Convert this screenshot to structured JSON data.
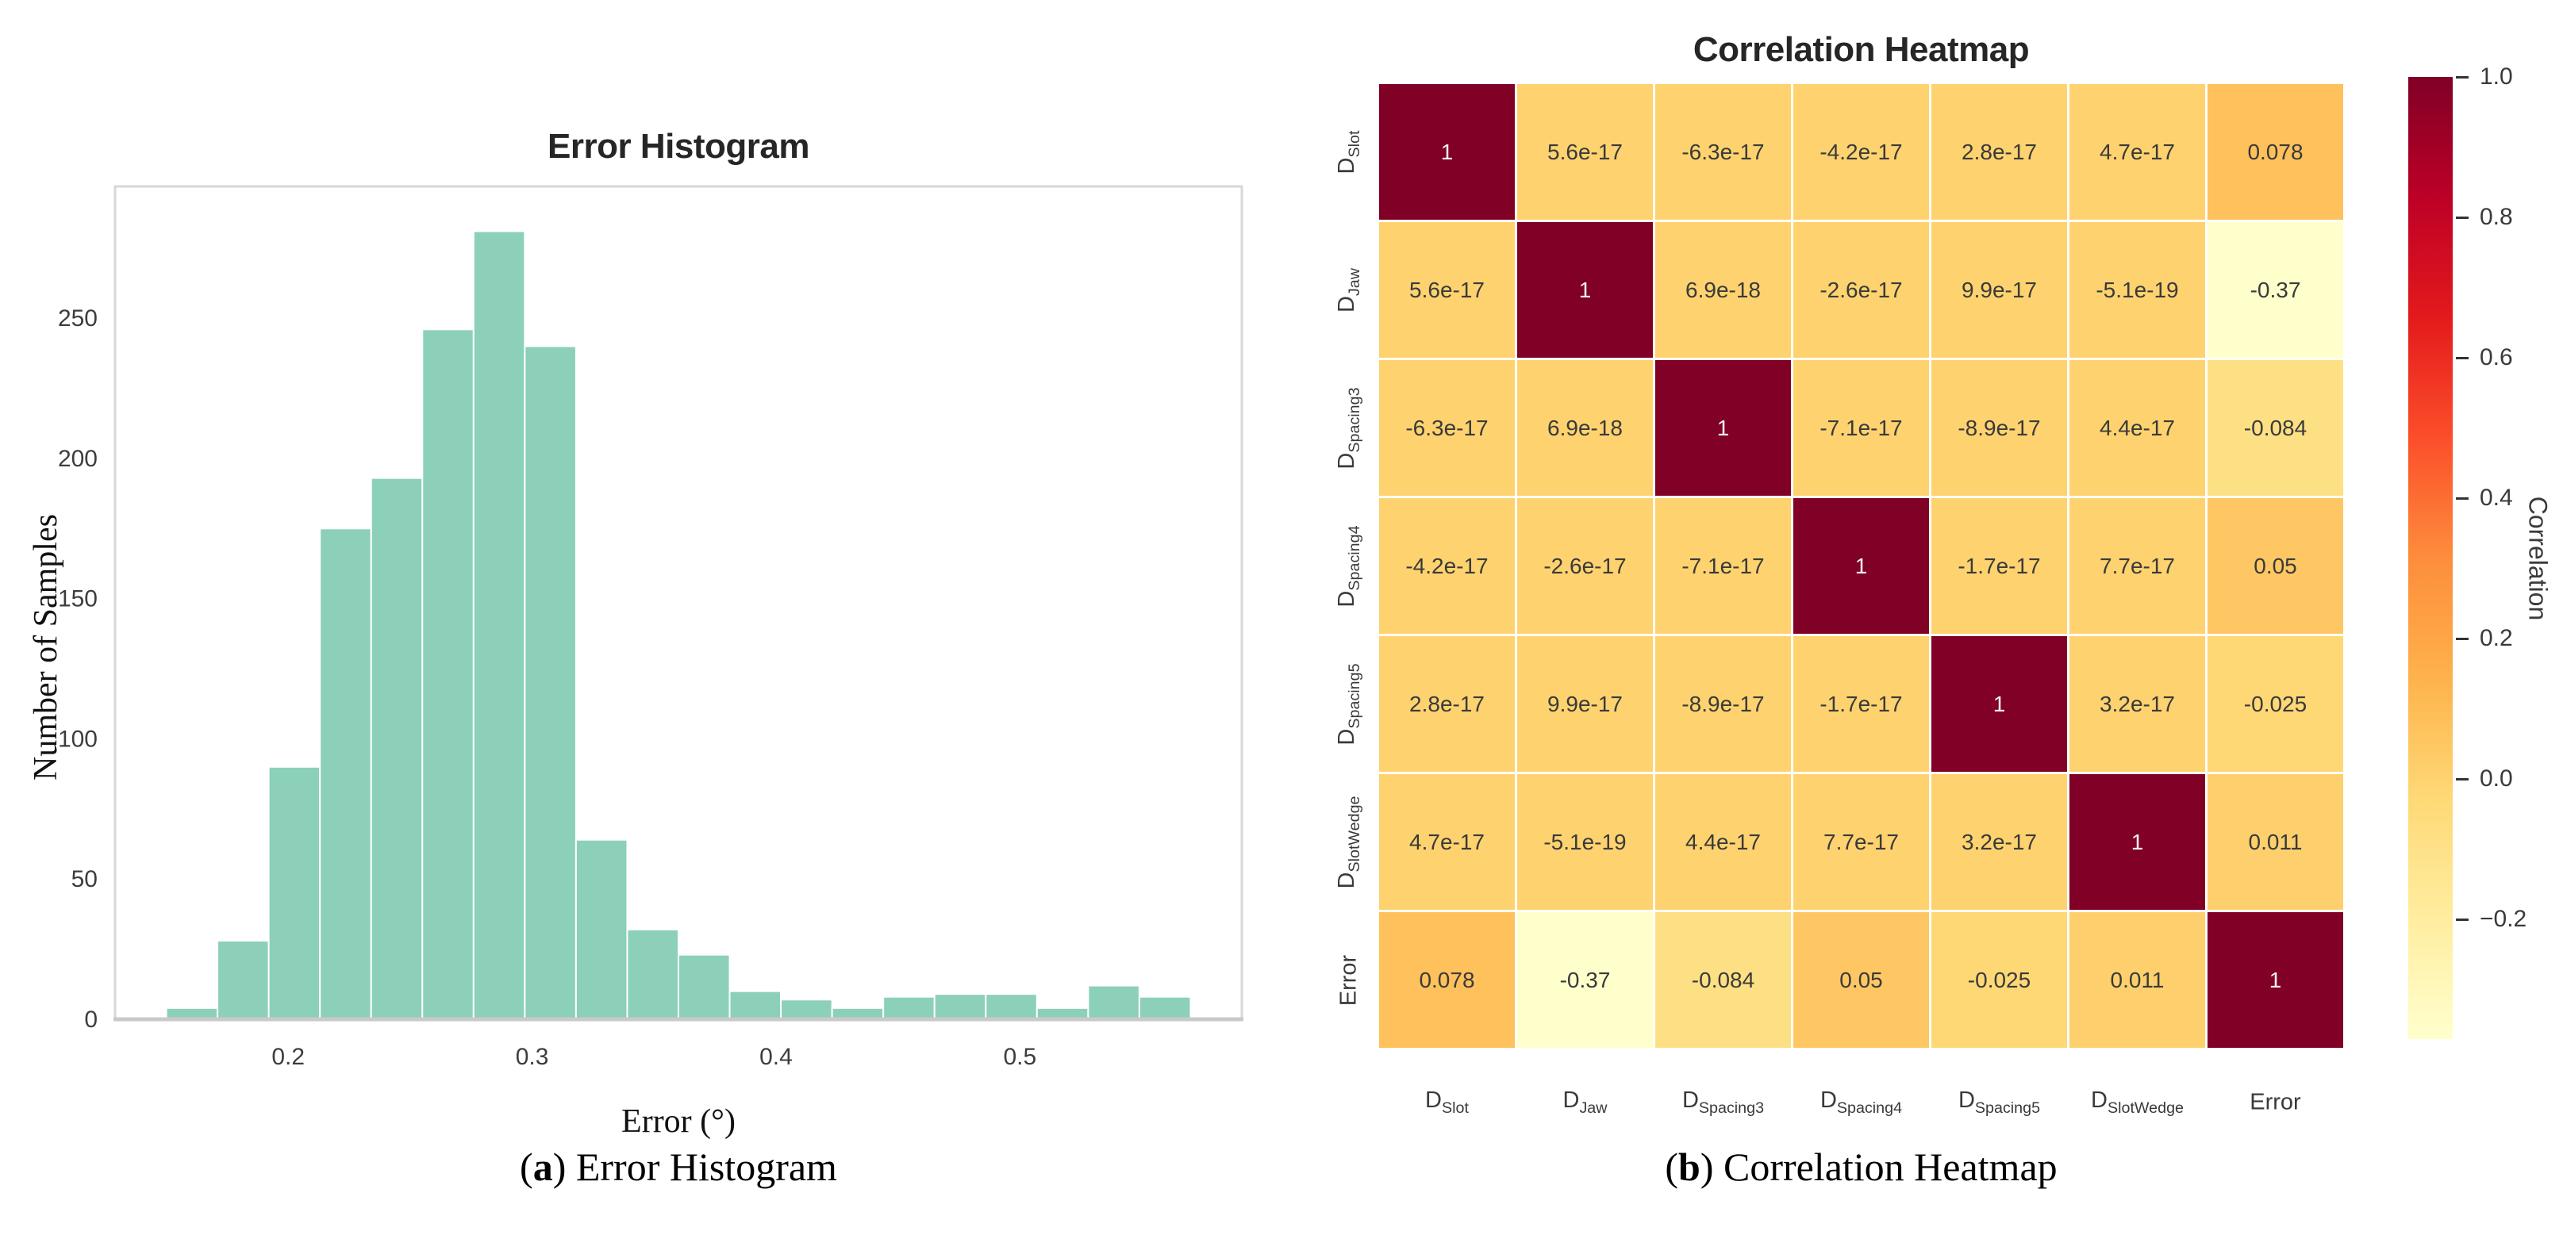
{
  "captions": {
    "a": {
      "pre": "(",
      "bold": "a",
      "post": ") Error Histogram"
    },
    "b": {
      "pre": "(",
      "bold": "b",
      "post": ") Correlation Heatmap"
    }
  },
  "chart_data": [
    {
      "type": "bar",
      "subtype": "histogram",
      "title": "Error Histogram",
      "xlabel": "Error (°)",
      "ylabel": "Number of Samples",
      "bin_start": 0.15,
      "bin_width": 0.021,
      "values": [
        4,
        28,
        90,
        175,
        193,
        246,
        281,
        240,
        64,
        32,
        23,
        10,
        7,
        4,
        8,
        9,
        9,
        4,
        12,
        8
      ],
      "xticks": [
        0.2,
        0.3,
        0.4,
        0.5
      ],
      "yticks": [
        0,
        50,
        100,
        150,
        200,
        250
      ],
      "xlim": [
        0.129,
        0.591
      ],
      "ylim": [
        0,
        297
      ],
      "grid": false,
      "bar_color": "#8cd0ba",
      "bar_edge_color": "#ffffff",
      "spine_color": "#d7d7d7",
      "axis_line_color": "#c9c9c9"
    },
    {
      "type": "heatmap",
      "title": "Correlation Heatmap",
      "labels": [
        {
          "base": "D",
          "sub": "Slot"
        },
        {
          "base": "D",
          "sub": "Jaw"
        },
        {
          "base": "D",
          "sub": "Spacing3"
        },
        {
          "base": "D",
          "sub": "Spacing4"
        },
        {
          "base": "D",
          "sub": "Spacing5"
        },
        {
          "base": "D",
          "sub": "SlotWedge"
        },
        {
          "base": "Error",
          "sub": ""
        }
      ],
      "cells": [
        [
          "1",
          "5.6e-17",
          "-6.3e-17",
          "-4.2e-17",
          "2.8e-17",
          "4.7e-17",
          "0.078"
        ],
        [
          "5.6e-17",
          "1",
          "6.9e-18",
          "-2.6e-17",
          "9.9e-17",
          "-5.1e-19",
          "-0.37"
        ],
        [
          "-6.3e-17",
          "6.9e-18",
          "1",
          "-7.1e-17",
          "-8.9e-17",
          "4.4e-17",
          "-0.084"
        ],
        [
          "-4.2e-17",
          "-2.6e-17",
          "-7.1e-17",
          "1",
          "-1.7e-17",
          "7.7e-17",
          "0.05"
        ],
        [
          "2.8e-17",
          "9.9e-17",
          "-8.9e-17",
          "-1.7e-17",
          "1",
          "3.2e-17",
          "-0.025"
        ],
        [
          "4.7e-17",
          "-5.1e-19",
          "4.4e-17",
          "7.7e-17",
          "3.2e-17",
          "1",
          "0.011"
        ],
        [
          "0.078",
          "-0.37",
          "-0.084",
          "0.05",
          "-0.025",
          "0.011",
          "1"
        ]
      ],
      "colormap": "YlOrRd",
      "vmin": -0.37,
      "vmax": 1.0,
      "legend_position": "right",
      "colorbar": {
        "label": "Correlation",
        "tick_values": [
          1.0,
          0.8,
          0.6,
          0.4,
          0.2,
          0.0,
          -0.2
        ]
      }
    }
  ]
}
